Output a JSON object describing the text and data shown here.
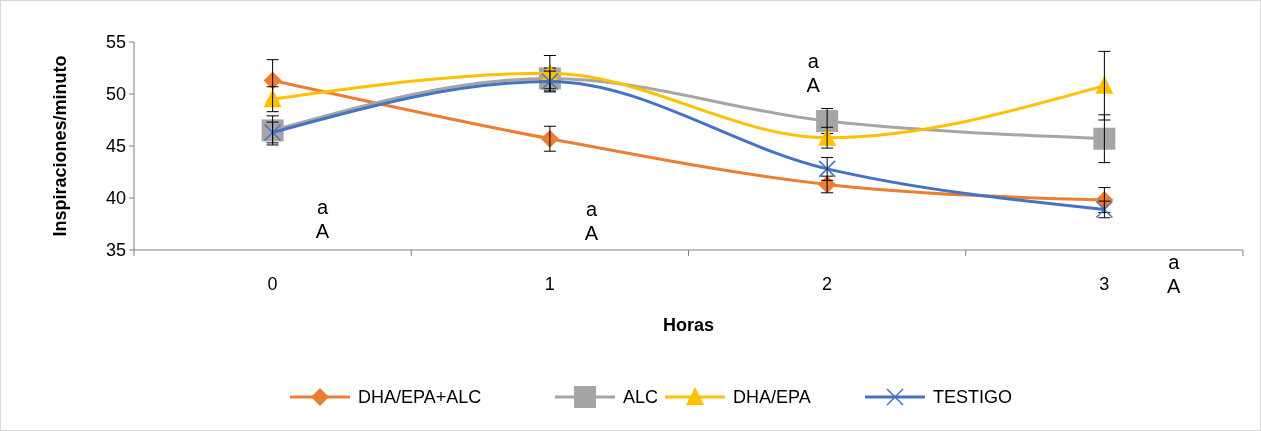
{
  "chart_data": {
    "type": "line",
    "xlabel": "Horas",
    "ylabel": "Inspiraciones/minuto",
    "categories": [
      "0",
      "1",
      "2",
      "3"
    ],
    "series": [
      {
        "name": "DHA/EPA+ALC",
        "color": "#ed7d31",
        "marker": "diamond",
        "values": [
          51.3,
          45.7,
          41.3,
          39.8
        ],
        "errors": [
          2.0,
          1.2,
          0.8,
          1.2
        ]
      },
      {
        "name": "ALC",
        "color": "#a5a5a5",
        "marker": "square",
        "values": [
          46.5,
          51.5,
          47.4,
          45.7
        ],
        "errors": [
          1.4,
          1.0,
          1.2,
          2.3
        ]
      },
      {
        "name": "DHA/EPA",
        "color": "#ffc000",
        "marker": "triangle",
        "values": [
          49.5,
          52.0,
          45.8,
          50.8
        ],
        "errors": [
          1.2,
          1.7,
          1.0,
          3.3
        ]
      },
      {
        "name": "TESTIGO",
        "color": "#4472c4",
        "marker": "cross",
        "values": [
          46.3,
          51.2,
          42.8,
          38.9
        ],
        "errors": [
          1.0,
          1.0,
          1.1,
          0.8
        ]
      }
    ],
    "ylim": [
      35,
      55
    ],
    "yticks": [
      35,
      40,
      45,
      50,
      55
    ],
    "grid": false,
    "legend": "bottom",
    "annotations": [
      "a\nA",
      "a\nA",
      "a\nA",
      "a\nA"
    ]
  }
}
